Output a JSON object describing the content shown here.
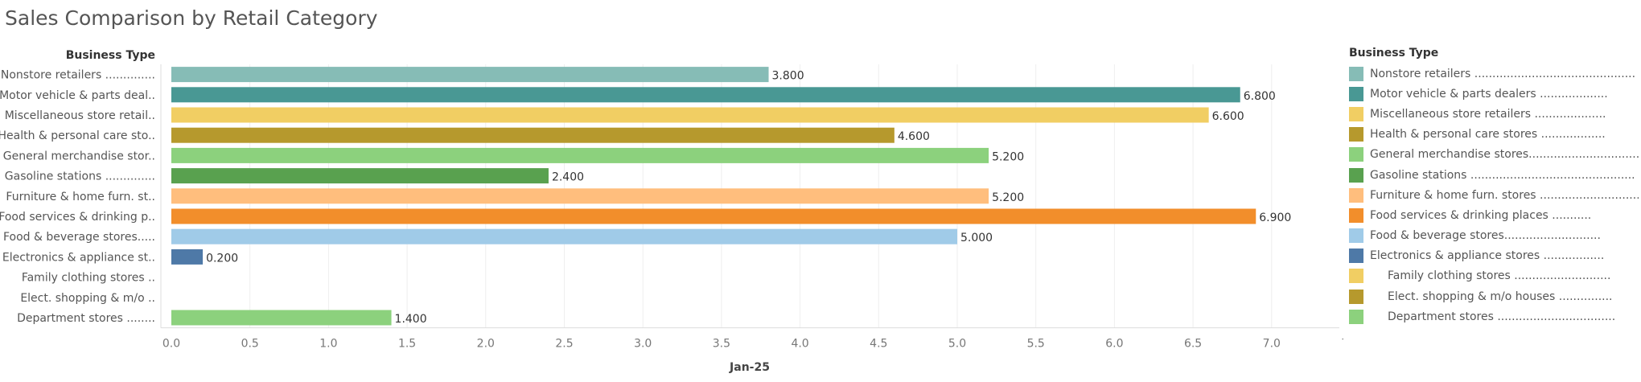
{
  "chart_data": {
    "type": "bar",
    "orientation": "horizontal",
    "title": "Sales Comparison by Retail Category",
    "row_header": "Business Type",
    "xlabel": "Jan-25",
    "xlim": [
      0,
      7.5
    ],
    "xticks": [
      "0.0",
      "0.5",
      "1.0",
      "1.5",
      "2.0",
      "2.5",
      "3.0",
      "3.5",
      "4.0",
      "4.5",
      "5.0",
      "5.5",
      "6.0",
      "6.5",
      "7.0",
      "7.5"
    ],
    "grid": true,
    "categories": [
      "Nonstore retailers ..............",
      "Motor vehicle & parts deal..",
      "Miscellaneous store retail..",
      "Health & personal care sto..",
      "General merchandise stor..",
      "Gasoline stations ..............",
      "Furniture & home furn. st..",
      "Food services & drinking p..",
      "Food & beverage stores.....",
      "Electronics & appliance st..",
      "Family clothing stores ..",
      "Elect. shopping & m/o ..",
      "Department stores ........"
    ],
    "values": [
      3.8,
      6.8,
      6.6,
      4.6,
      5.2,
      2.4,
      5.2,
      6.9,
      5.0,
      0.2,
      null,
      null,
      1.4
    ],
    "value_labels": [
      "3.800",
      "6.800",
      "6.600",
      "4.600",
      "5.200",
      "2.400",
      "5.200",
      "6.900",
      "5.000",
      "0.200",
      "",
      "",
      "1.400"
    ],
    "colors": [
      "#86bcb6",
      "#499894",
      "#f1ce63",
      "#b6992d",
      "#8cd17d",
      "#59a14f",
      "#ffbe7d",
      "#f28e2b",
      "#a0cbe8",
      "#4e79a7",
      "#f1ce63",
      "#b6992d",
      "#8cd17d"
    ],
    "legend": {
      "title": "Business Type",
      "position": "right",
      "items": [
        {
          "label": "Nonstore retailers .............................................",
          "color": "#86bcb6",
          "indent": false
        },
        {
          "label": "Motor vehicle & parts dealers ...................",
          "color": "#499894",
          "indent": false
        },
        {
          "label": "Miscellaneous store retailers ....................",
          "color": "#f1ce63",
          "indent": false
        },
        {
          "label": "Health & personal care stores ..................",
          "color": "#b6992d",
          "indent": false
        },
        {
          "label": "General merchandise stores.................................",
          "color": "#8cd17d",
          "indent": false
        },
        {
          "label": "Gasoline stations ..............................................",
          "color": "#59a14f",
          "indent": false
        },
        {
          "label": "Furniture & home furn. stores .............................",
          "color": "#ffbe7d",
          "indent": false
        },
        {
          "label": "Food services & drinking places ...........",
          "color": "#f28e2b",
          "indent": false
        },
        {
          "label": "Food & beverage stores...........................",
          "color": "#a0cbe8",
          "indent": false
        },
        {
          "label": "Electronics & appliance stores .................",
          "color": "#4e79a7",
          "indent": false
        },
        {
          "label": "Family clothing stores ...........................",
          "color": "#f1ce63",
          "indent": true
        },
        {
          "label": "Elect. shopping & m/o houses ...............",
          "color": "#b6992d",
          "indent": true
        },
        {
          "label": "Department stores .................................",
          "color": "#8cd17d",
          "indent": true
        }
      ]
    }
  }
}
